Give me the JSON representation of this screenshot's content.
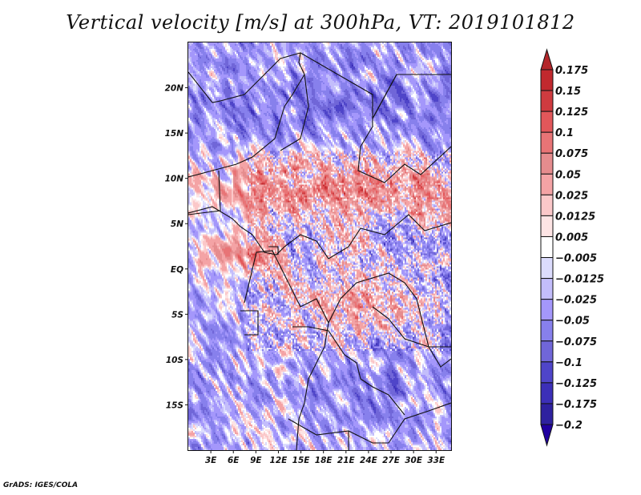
{
  "chart_data": {
    "type": "heatmap",
    "title": "Vertical velocity [m/s] at 300hPa, VT: 2019101812",
    "variable": "Vertical velocity",
    "units": "m/s",
    "level": "300hPa",
    "valid_time": "2019101812",
    "xlabel": "",
    "ylabel": "",
    "lon_range": [
      0,
      35
    ],
    "lat_range": [
      -20,
      25
    ],
    "x_ticks": [
      {
        "value": 3,
        "label": "3E"
      },
      {
        "value": 6,
        "label": "6E"
      },
      {
        "value": 9,
        "label": "9E"
      },
      {
        "value": 12,
        "label": "12E"
      },
      {
        "value": 15,
        "label": "15E"
      },
      {
        "value": 18,
        "label": "18E"
      },
      {
        "value": 21,
        "label": "21E"
      },
      {
        "value": 24,
        "label": "24E"
      },
      {
        "value": 27,
        "label": "27E"
      },
      {
        "value": 30,
        "label": "30E"
      },
      {
        "value": 33,
        "label": "33E"
      }
    ],
    "y_ticks": [
      {
        "value": 20,
        "label": "20N"
      },
      {
        "value": 15,
        "label": "15N"
      },
      {
        "value": 10,
        "label": "10N"
      },
      {
        "value": 5,
        "label": "5N"
      },
      {
        "value": 0,
        "label": "EQ"
      },
      {
        "value": -5,
        "label": "5S"
      },
      {
        "value": -10,
        "label": "10S"
      },
      {
        "value": -15,
        "label": "15S"
      }
    ],
    "colorbar": {
      "orientation": "vertical",
      "placement": "right",
      "extend": "both",
      "levels": [
        0.175,
        0.15,
        0.125,
        0.1,
        0.075,
        0.05,
        0.025,
        0.0125,
        0.005,
        -0.005,
        -0.0125,
        -0.025,
        -0.05,
        -0.075,
        -0.1,
        -0.125,
        -0.175,
        -0.2
      ],
      "labels": [
        "0.175",
        "0.15",
        "0.125",
        "0.1",
        "0.075",
        "0.05",
        "0.025",
        "0.0125",
        "0.005",
        "−0.005",
        "−0.0125",
        "−0.025",
        "−0.05",
        "−0.075",
        "−0.1",
        "−0.125",
        "−0.175",
        "−0.2"
      ],
      "colors_top_to_bottom": [
        "#b3262a",
        "#c1292e",
        "#cf3b3f",
        "#e2575a",
        "#e87476",
        "#e58c8e",
        "#f4a3a5",
        "#fbc8c9",
        "#fde4e4",
        "#ffffff",
        "#dcdcfd",
        "#c3bdfb",
        "#a497fb",
        "#8780ec",
        "#7066d8",
        "#4f45c9",
        "#3c2fb8",
        "#2e219f",
        "#2100a0"
      ]
    },
    "regions_summary": [
      {
        "area": "Sahel / northern Central Africa 5N-13N",
        "tendency": "strong positive (up to >0.1)"
      },
      {
        "area": "Congo Basin 0-8S",
        "tendency": "positive (0.025-0.1)"
      },
      {
        "area": "Sahara north of 15N",
        "tendency": "mostly negative (-0.025 to -0.1) with weak positive streaks"
      },
      {
        "area": "Southern Africa / Atlantic south of 8S",
        "tendency": "mostly negative"
      },
      {
        "area": "Gulf of Guinea near 0-3N, 5E-10E",
        "tendency": "positive radial streaks"
      }
    ]
  },
  "footer": "GrADS: IGES/COLA"
}
